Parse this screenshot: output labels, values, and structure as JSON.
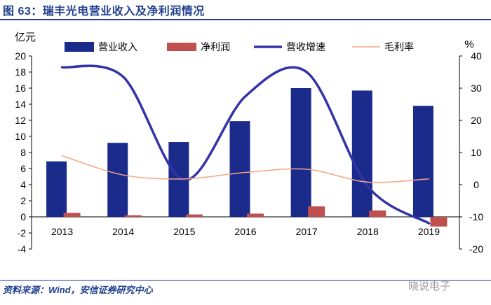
{
  "figure_title": "图 63：瑞丰光电营业收入及净利润情况",
  "source": "资料来源：Wind，安信证券研究中心",
  "watermark": "晓说电子",
  "chart_data": {
    "type": "bar",
    "categories": [
      "2013",
      "2014",
      "2015",
      "2016",
      "2017",
      "2018",
      "2019"
    ],
    "left_axis": {
      "unit_label": "亿元",
      "ylim": [
        -4,
        20
      ],
      "ticks": [
        -4,
        -2,
        0,
        2,
        4,
        6,
        8,
        10,
        12,
        14,
        16,
        18,
        20
      ]
    },
    "right_axis": {
      "unit_label": "%",
      "ylim": [
        -20,
        40
      ],
      "ticks": [
        -20,
        -10,
        0,
        10,
        20,
        30,
        40
      ]
    },
    "series": [
      {
        "name": "营业收入",
        "kind": "bar",
        "axis": "left",
        "color": "#1a2b8c",
        "values": [
          6.9,
          9.2,
          9.3,
          11.9,
          16.0,
          15.7,
          13.8
        ]
      },
      {
        "name": "净利润",
        "kind": "bar",
        "axis": "left",
        "color": "#c0504d",
        "values": [
          0.5,
          0.2,
          0.3,
          0.4,
          1.3,
          0.8,
          -1.2
        ]
      },
      {
        "name": "营收增速",
        "kind": "line",
        "axis": "right",
        "color": "#3333a8",
        "values": [
          36.5,
          33.5,
          1.5,
          27.5,
          35.0,
          -0.5,
          -12.0
        ]
      },
      {
        "name": "毛利率",
        "kind": "line",
        "axis": "right",
        "color": "#f4a582",
        "values": [
          9.0,
          3.0,
          1.8,
          3.8,
          4.8,
          0.8,
          1.8
        ]
      }
    ],
    "legend_position": "top",
    "grid": false
  }
}
